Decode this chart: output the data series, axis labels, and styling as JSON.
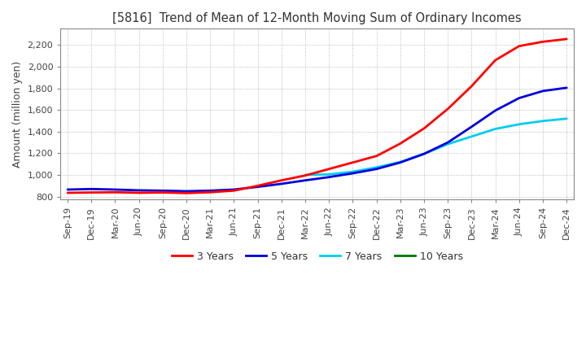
{
  "title": "[5816]  Trend of Mean of 12-Month Moving Sum of Ordinary Incomes",
  "ylabel": "Amount (million yen)",
  "ylim": [
    775,
    2350
  ],
  "yticks": [
    800,
    1000,
    1200,
    1400,
    1600,
    1800,
    2000,
    2200
  ],
  "background_color": "#ffffff",
  "plot_bg_color": "#ffffff",
  "grid_color": "#aaaaaa",
  "line_colors": {
    "3yr": "#ff0000",
    "5yr": "#0000dd",
    "7yr": "#00ccee",
    "10yr": "#007700"
  },
  "x_labels": [
    "Sep-19",
    "Dec-19",
    "Mar-20",
    "Jun-20",
    "Sep-20",
    "Dec-20",
    "Mar-21",
    "Jun-21",
    "Sep-21",
    "Dec-21",
    "Mar-22",
    "Jun-22",
    "Sep-22",
    "Dec-22",
    "Mar-23",
    "Jun-23",
    "Sep-23",
    "Dec-23",
    "Mar-24",
    "Jun-24",
    "Sep-24",
    "Dec-24"
  ],
  "data_3yr": [
    835,
    838,
    840,
    835,
    838,
    832,
    840,
    855,
    900,
    950,
    995,
    1055,
    1115,
    1175,
    1290,
    1430,
    1610,
    1820,
    2060,
    2190,
    2230,
    2255
  ],
  "data_5yr": [
    865,
    870,
    865,
    858,
    855,
    850,
    855,
    865,
    890,
    918,
    950,
    980,
    1015,
    1055,
    1115,
    1195,
    1300,
    1445,
    1595,
    1710,
    1775,
    1805
  ],
  "data_7yr": [
    null,
    null,
    null,
    null,
    null,
    null,
    null,
    null,
    null,
    null,
    1000,
    1005,
    1030,
    1070,
    1120,
    1195,
    1285,
    1355,
    1425,
    1468,
    1498,
    1520
  ],
  "data_10yr": [
    null,
    null,
    null,
    null,
    null,
    null,
    null,
    null,
    null,
    null,
    null,
    null,
    null,
    null,
    null,
    null,
    null,
    null,
    null,
    null,
    null,
    null
  ]
}
